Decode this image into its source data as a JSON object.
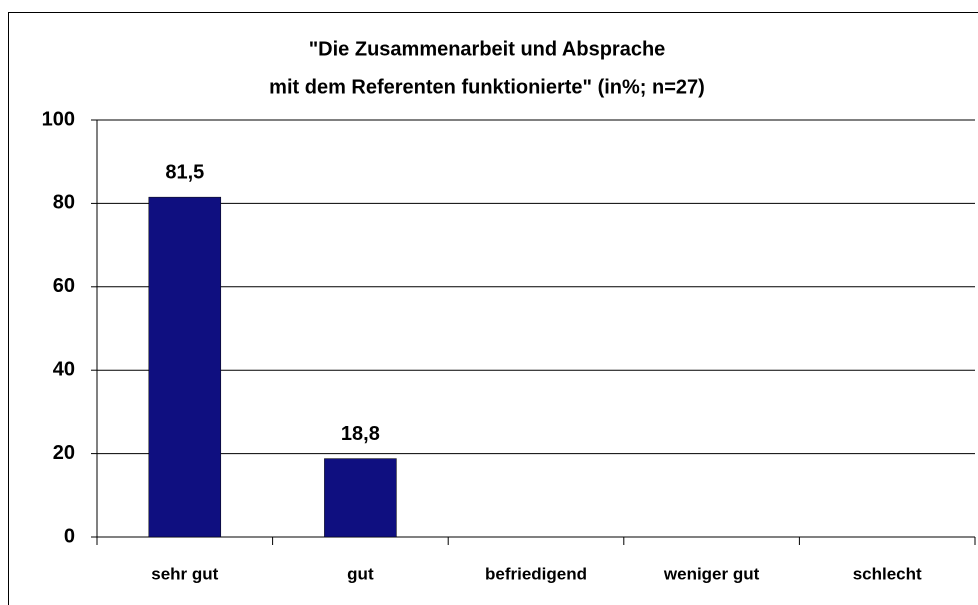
{
  "chart_data": {
    "type": "bar",
    "title": [
      "\"Die Zusammenarbeit und Absprache",
      "mit dem Referenten funktionierte\" (in%; n=27)"
    ],
    "categories": [
      "sehr gut",
      "gut",
      "befriedigend",
      "weniger gut",
      "schlecht"
    ],
    "values": [
      81.5,
      18.8,
      null,
      null,
      null
    ],
    "value_labels": [
      "81,5",
      "18,8",
      null,
      null,
      null
    ],
    "color": "#0f0f80",
    "ylim": [
      0,
      100
    ],
    "yticks": [
      0,
      20,
      40,
      60,
      80,
      100
    ],
    "grid": true
  }
}
